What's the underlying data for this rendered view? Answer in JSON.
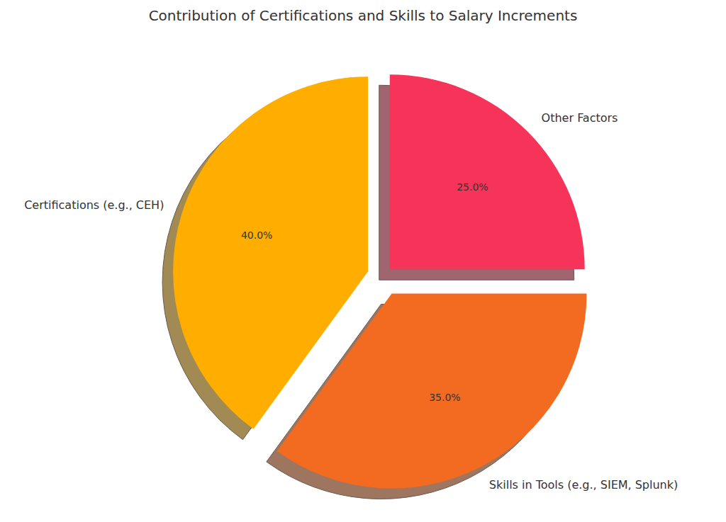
{
  "chart_data": {
    "type": "pie",
    "title": "Contribution of Certifications and Skills to Salary Increments",
    "categories": [
      "Certifications (e.g., CEH)",
      "Skills in Tools (e.g., SIEM, Splunk)",
      "Other Factors"
    ],
    "values": [
      40,
      35,
      25
    ],
    "value_labels": [
      "40.0%",
      "35.0%",
      "25.0%"
    ],
    "colors": [
      "#ffae00",
      "#f26b21",
      "#f63358"
    ],
    "data_labels": true
  }
}
